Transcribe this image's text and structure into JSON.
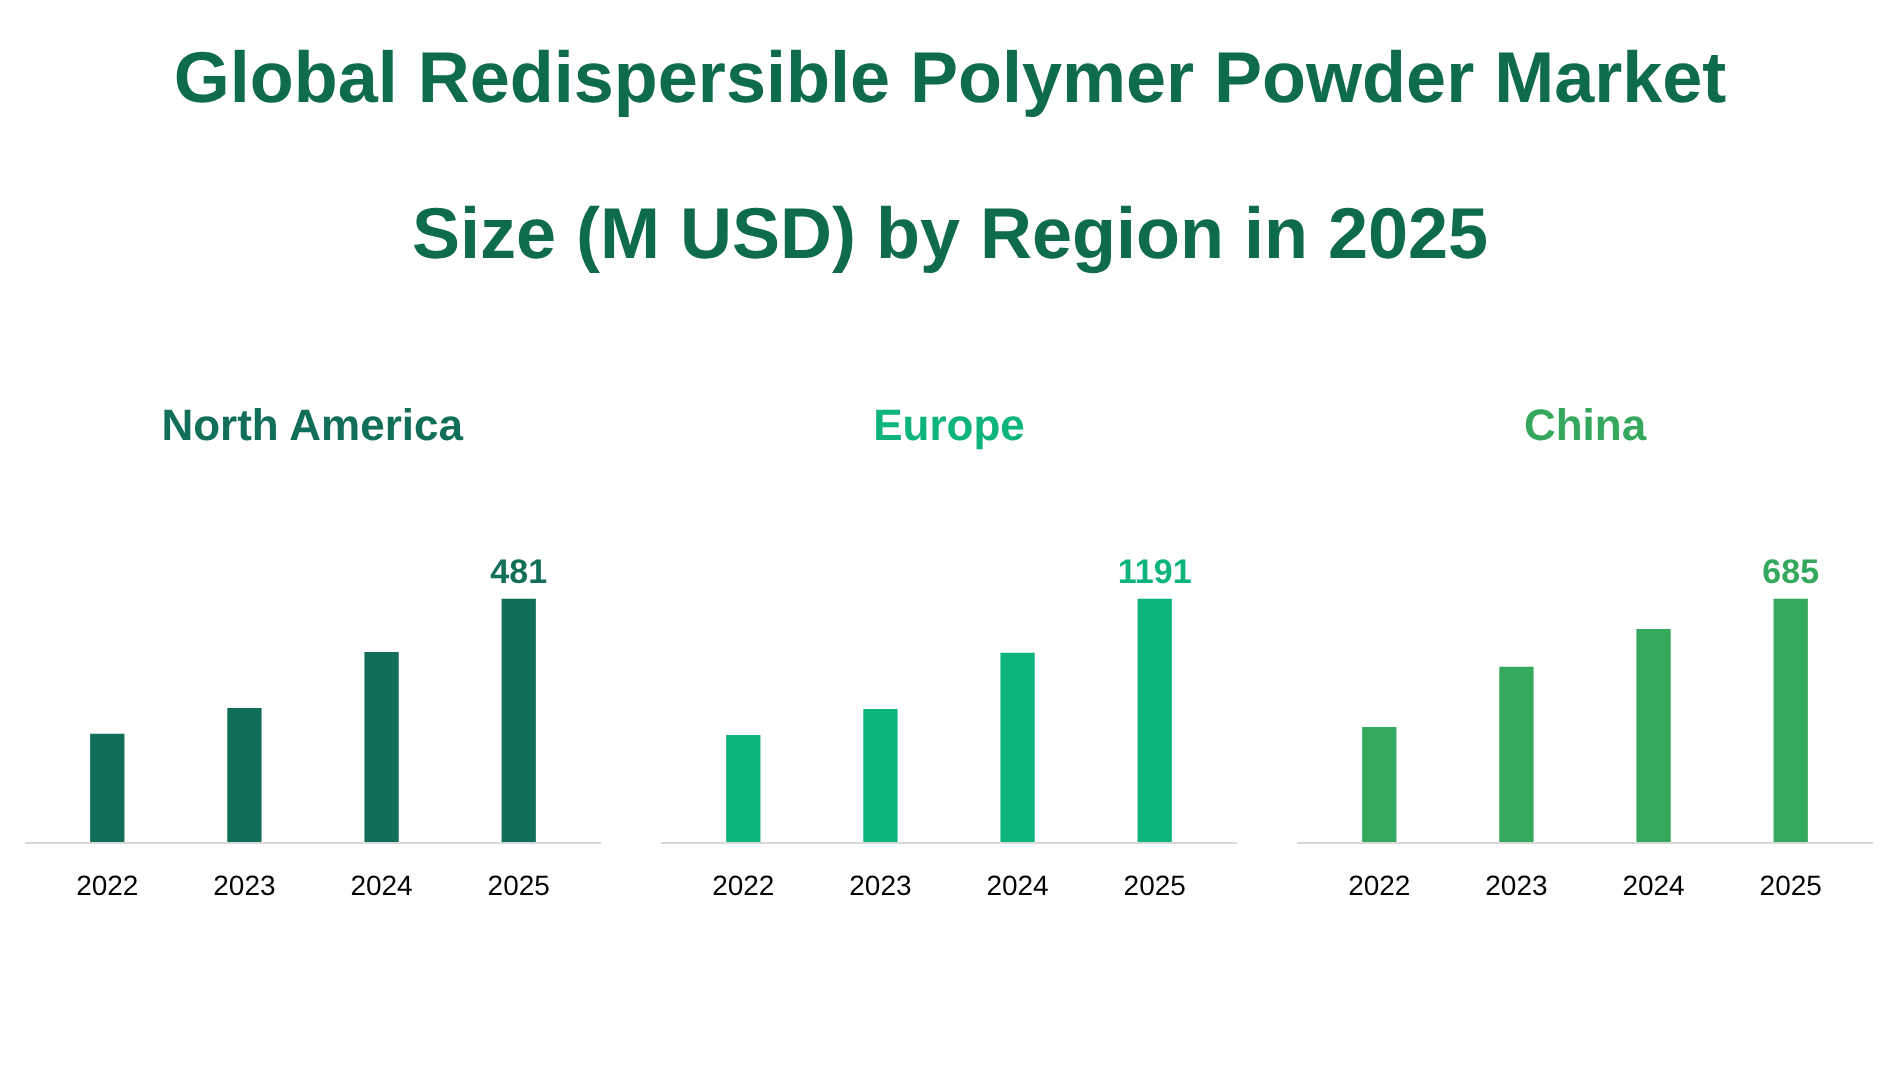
{
  "chart_data": [
    {
      "type": "other",
      "title": "Global Redispersible Polymer Powder Market Size (M USD) by Region in 2025"
    },
    {
      "type": "bar",
      "title": "North America",
      "categories": [
        "2022",
        "2023",
        "2024",
        "2025"
      ],
      "values": [
        215,
        266,
        376,
        481
      ],
      "value_labels": [
        null,
        null,
        null,
        "481"
      ],
      "color": "#116e58",
      "tick_labels": "x"
    },
    {
      "type": "bar",
      "title": "Europe",
      "categories": [
        "2022",
        "2023",
        "2024",
        "2025"
      ],
      "values": [
        527,
        653,
        928,
        1191
      ],
      "value_labels": [
        null,
        null,
        null,
        "1191"
      ],
      "color": "#0db47e",
      "tick_labels": "x"
    },
    {
      "type": "bar",
      "title": "China",
      "categories": [
        "2022",
        "2023",
        "2024",
        "2025"
      ],
      "values": [
        325,
        494,
        600,
        685
      ],
      "value_labels": [
        null,
        null,
        null,
        "685"
      ],
      "color": "#34a85c",
      "tick_labels": "x"
    }
  ]
}
